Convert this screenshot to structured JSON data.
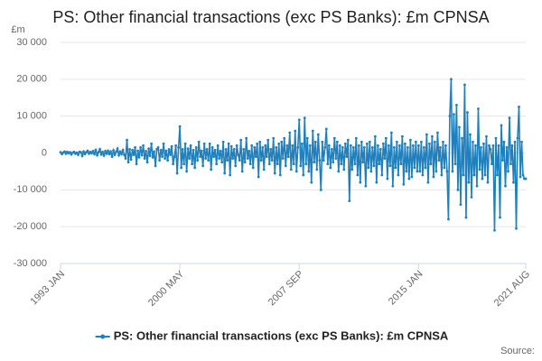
{
  "chart_data": {
    "type": "line",
    "title": "PS: Other financial transactions (exc PS Banks): £m CPNSA",
    "y_unit": "£m",
    "source": "Source:",
    "categories": [
      "1993 JAN",
      null,
      null,
      null,
      null,
      null,
      null,
      null,
      null,
      null,
      null,
      null,
      null,
      null,
      null,
      null,
      null,
      null,
      null,
      null,
      null,
      null,
      null,
      null,
      null,
      null,
      null,
      null,
      null,
      null,
      null,
      null,
      null,
      null,
      null,
      null,
      null,
      null,
      null,
      null,
      null,
      null,
      null,
      null,
      null,
      null,
      null,
      null,
      null,
      null,
      null,
      null,
      null,
      null,
      null,
      null,
      null,
      null,
      null,
      null,
      null,
      null,
      null,
      null,
      null,
      null,
      null,
      null,
      null,
      null,
      null,
      null,
      null,
      null,
      null,
      null,
      null,
      null,
      null,
      null,
      null,
      null,
      null,
      null,
      null,
      null,
      null,
      null,
      "2000 MAY",
      null,
      null,
      null,
      null,
      null,
      null,
      null,
      null,
      null,
      null,
      null,
      null,
      null,
      null,
      null,
      null,
      null,
      null,
      null,
      null,
      null,
      null,
      null,
      null,
      null,
      null,
      null,
      null,
      null,
      null,
      null,
      null,
      null,
      null,
      null,
      null,
      null,
      null,
      null,
      null,
      null,
      null,
      null,
      null,
      null,
      null,
      null,
      null,
      null,
      null,
      null,
      null,
      null,
      null,
      null,
      null,
      null,
      null,
      null,
      null,
      null,
      null,
      null,
      null,
      null,
      null,
      null,
      null,
      null,
      null,
      null,
      null,
      null,
      null,
      null,
      null,
      null,
      null,
      null,
      null,
      null,
      null,
      null,
      null,
      null,
      null,
      null,
      "2007 SEP",
      null,
      null,
      null,
      null,
      null,
      null,
      null,
      null,
      null,
      null,
      null,
      null,
      null,
      null,
      null,
      null,
      null,
      null,
      null,
      null,
      null,
      null,
      null,
      null,
      null,
      null,
      null,
      null,
      null,
      null,
      null,
      null,
      null,
      null,
      null,
      null,
      null,
      null,
      null,
      null,
      null,
      null,
      null,
      null,
      null,
      null,
      null,
      null,
      null,
      null,
      null,
      null,
      null,
      null,
      null,
      null,
      null,
      null,
      null,
      null,
      null,
      null,
      null,
      null,
      null,
      null,
      null,
      null,
      null,
      null,
      null,
      null,
      null,
      null,
      null,
      null,
      null,
      null,
      null,
      null,
      null,
      null,
      null,
      null,
      null,
      null,
      null,
      "2015 JAN",
      null,
      null,
      null,
      null,
      null,
      null,
      null,
      null,
      null,
      null,
      null,
      null,
      null,
      null,
      null,
      null,
      null,
      null,
      null,
      null,
      null,
      null,
      null,
      null,
      null,
      null,
      null,
      null,
      null,
      null,
      null,
      null,
      null,
      null,
      null,
      null,
      null,
      null,
      null,
      null,
      null,
      null,
      null,
      null,
      null,
      null,
      null,
      null,
      null,
      null,
      null,
      null,
      null,
      null,
      null,
      null,
      null,
      null,
      null,
      null,
      null,
      null,
      null,
      null,
      null,
      null,
      null,
      null,
      null,
      null,
      null,
      null,
      null,
      null,
      null,
      null,
      null,
      null,
      "2021 AUG"
    ],
    "series": [
      {
        "name": "PS: Other financial transactions (exc PS Banks): £m CPNSA",
        "color": "#1f80bd",
        "values": [
          200,
          -300,
          100,
          400,
          -200,
          300,
          -100,
          200,
          -400,
          100,
          300,
          -200,
          100,
          -500,
          300,
          200,
          -800,
          400,
          -300,
          200,
          600,
          -200,
          300,
          -100,
          500,
          -300,
          800,
          -600,
          200,
          1000,
          -400,
          300,
          -700,
          500,
          -200,
          600,
          -300,
          400,
          -1000,
          700,
          -500,
          300,
          1200,
          -600,
          400,
          -300,
          800,
          -500,
          -1500,
          3500,
          -2500,
          1000,
          -1800,
          800,
          -500,
          1500,
          -3000,
          600,
          -1200,
          1500,
          -600,
          2000,
          -1500,
          500,
          -2500,
          1200,
          -800,
          2500,
          -1200,
          400,
          -3500,
          1000,
          1500,
          -2000,
          800,
          -1000,
          2500,
          -1500,
          600,
          -2000,
          1000,
          -500,
          1800,
          -3000,
          -1000,
          2000,
          -5500,
          1500,
          7200,
          -4000,
          1000,
          -3000,
          2500,
          -5000,
          1200,
          -1500,
          2000,
          -3000,
          800,
          -4000,
          1500,
          -2000,
          3000,
          -1000,
          600,
          -3500,
          2500,
          -1500,
          1000,
          -2000,
          2500,
          -4500,
          1500,
          -1000,
          800,
          -3000,
          2000,
          -1500,
          500,
          -2500,
          3000,
          -5500,
          1000,
          -2000,
          2500,
          -6000,
          1800,
          -1500,
          1000,
          -3500,
          2000,
          -500,
          -2000,
          3500,
          -5000,
          1000,
          -2500,
          4000,
          -1500,
          500,
          -3000,
          2000,
          -4000,
          1500,
          -1000,
          2500,
          -6500,
          3000,
          -2000,
          1500,
          -4500,
          2000,
          -1000,
          3500,
          -3000,
          1000,
          -2000,
          4000,
          -5500,
          1500,
          -3000,
          2500,
          -6000,
          3000,
          -1500,
          4000,
          -3500,
          2000,
          -1000,
          5500,
          -4500,
          2000,
          -3000,
          6000,
          -5000,
          1500,
          9000,
          -3500,
          2500,
          -6000,
          9500,
          -3000,
          4000,
          -5000,
          2000,
          -8000,
          6000,
          -2500,
          3000,
          -4500,
          5000,
          -2000,
          -10000,
          3000,
          -2000,
          1500,
          6500,
          -3000,
          2000,
          -4000,
          1000,
          -2500,
          4000,
          -1500,
          3000,
          -5000,
          2000,
          -3000,
          1500,
          -4500,
          2500,
          -1000,
          3500,
          -13000,
          2000,
          -4500,
          1500,
          -3000,
          4000,
          -6000,
          2000,
          -8000,
          3000,
          -2500,
          1500,
          -9000,
          2500,
          -4000,
          3000,
          -5000,
          1500,
          -3500,
          4500,
          -8000,
          2000,
          -3000,
          1000,
          -6000,
          2500,
          -1500,
          4000,
          -7000,
          2000,
          -3500,
          5500,
          -9000,
          1500,
          -4000,
          3000,
          -6000,
          2000,
          -3000,
          4500,
          -8500,
          2500,
          -5000,
          1500,
          -7000,
          3500,
          -6500,
          2000,
          -4000,
          3000,
          -5000,
          2000,
          -5000,
          3000,
          -6000,
          1500,
          -4000,
          5000,
          -8000,
          2500,
          -3000,
          4500,
          -6500,
          3000,
          -5000,
          5500,
          -2000,
          1500,
          -6000,
          3000,
          -4000,
          2000,
          -5000,
          -18000,
          10000,
          20000,
          -5000,
          10500,
          -3000,
          13000,
          -10000,
          7000,
          -14000,
          4000,
          -6000,
          18500,
          -17500,
          11000,
          -8000,
          5000,
          -12000,
          3000,
          -6000,
          2000,
          -9000,
          12000,
          -4500,
          1500,
          -7000,
          2500,
          -6000,
          4500,
          -8000,
          2000,
          1000,
          -3000,
          2000,
          -21000,
          4000,
          -6000,
          2000,
          -17500,
          7500,
          -2000,
          3000,
          -9000,
          1500,
          -5000,
          9500,
          -3000,
          2000,
          -8000,
          3000,
          -20500,
          4000,
          12500,
          -6500,
          3000,
          -6000,
          -7000,
          -7000
        ]
      }
    ],
    "ylim": [
      -30000,
      30000
    ],
    "yticks": [
      {
        "value": -30000,
        "label": "-30 000"
      },
      {
        "value": -20000,
        "label": "-20 000"
      },
      {
        "value": -10000,
        "label": "-10 000"
      },
      0,
      {
        "value": 10000,
        "label": "10 000"
      },
      {
        "value": 20000,
        "label": "20 000"
      },
      {
        "value": 30000,
        "label": "30 000"
      }
    ],
    "grid": true,
    "legend": "bottom"
  }
}
